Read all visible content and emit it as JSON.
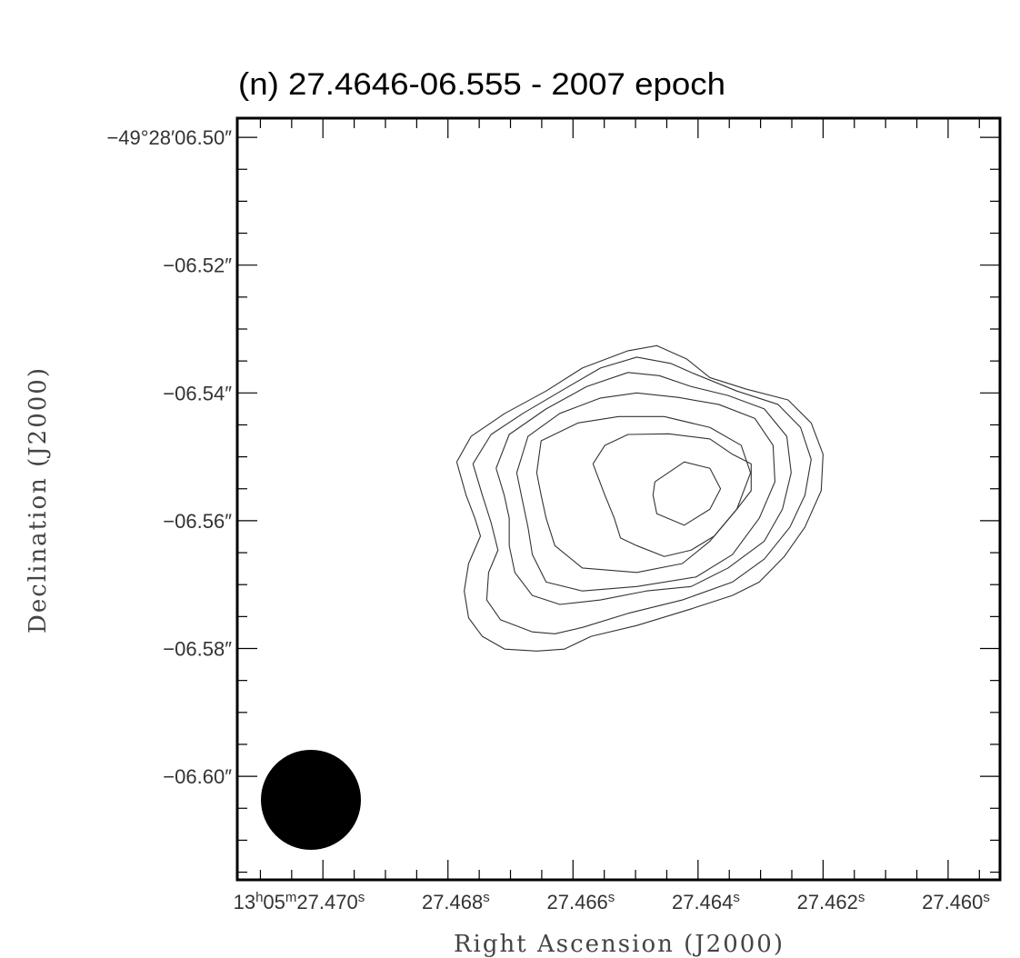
{
  "chart_data": {
    "type": "contour",
    "title": "(n) 27.4646-06.555 - 2007 epoch",
    "x_label": "Right Ascension (J2000)",
    "y_label": "Declination (J2000)",
    "xlim": [
      27.47137,
      27.45917
    ],
    "ylim": [
      -6.6162,
      -6.497
    ],
    "xticks": [
      {
        "value": 27.47,
        "label": "13h05m27.470s"
      },
      {
        "value": 27.468,
        "label": "27.468s"
      },
      {
        "value": 27.466,
        "label": "27.466s"
      },
      {
        "value": 27.464,
        "label": "27.464s"
      },
      {
        "value": 27.462,
        "label": "27.462s"
      },
      {
        "value": 27.46,
        "label": "27.460s"
      }
    ],
    "yticks": [
      {
        "value": -6.5,
        "label": "−49°28′06.50″"
      },
      {
        "value": -6.52,
        "label": "−06.52″"
      },
      {
        "value": -6.54,
        "label": "−06.54″"
      },
      {
        "value": -6.56,
        "label": "−06.56″"
      },
      {
        "value": -6.58,
        "label": "−06.58″"
      },
      {
        "value": -6.6,
        "label": "−06.60″"
      }
    ],
    "color": "#333333",
    "contours": [
      {
        "x": [
          27.46786,
          27.46763,
          27.46709,
          27.46643,
          27.46585,
          27.46512,
          27.46466,
          27.46418,
          27.46381,
          27.46323,
          27.46256,
          27.46219,
          27.462,
          27.46203,
          27.46229,
          27.46262,
          27.46302,
          27.46345,
          27.46411,
          27.46498,
          27.46571,
          27.46614,
          27.46658,
          27.46709,
          27.46745,
          27.46767,
          27.46774,
          27.46767,
          27.46748,
          27.46757,
          27.46771,
          27.46786
        ],
        "y": [
          -6.5508,
          -6.5468,
          -6.5432,
          -6.5397,
          -6.5361,
          -6.5334,
          -6.5326,
          -6.5347,
          -6.5376,
          -6.5394,
          -6.5411,
          -6.5447,
          -6.5496,
          -6.5553,
          -6.561,
          -6.5656,
          -6.5696,
          -6.5717,
          -6.5738,
          -6.5764,
          -6.5781,
          -6.5801,
          -6.5804,
          -6.5801,
          -6.5781,
          -6.5752,
          -6.571,
          -6.5667,
          -6.5624,
          -6.5596,
          -6.556,
          -6.5508
        ]
      },
      {
        "x": [
          27.4676,
          27.46731,
          27.4668,
          27.46614,
          27.46556,
          27.46498,
          27.46443,
          27.46411,
          27.46338,
          27.46272,
          27.46236,
          27.46219,
          27.46229,
          27.46253,
          27.46294,
          27.46345,
          27.46425,
          27.46512,
          27.46585,
          27.46629,
          27.46665,
          27.46716,
          27.46738,
          27.46735,
          27.4672,
          27.46731,
          27.46745,
          27.4676
        ],
        "y": [
          -6.5511,
          -6.5465,
          -6.5432,
          -6.5394,
          -6.5361,
          -6.5344,
          -6.5354,
          -6.5368,
          -6.5397,
          -6.5418,
          -6.5454,
          -6.5504,
          -6.556,
          -6.561,
          -6.566,
          -6.5696,
          -6.5724,
          -6.5745,
          -6.5767,
          -6.5777,
          -6.5774,
          -6.5755,
          -6.5724,
          -6.5681,
          -6.5646,
          -6.5603,
          -6.556,
          -6.5511
        ]
      },
      {
        "x": [
          27.46723,
          27.46702,
          27.46643,
          27.46578,
          27.46512,
          27.46462,
          27.46411,
          27.46352,
          27.46294,
          27.46258,
          27.46251,
          27.46265,
          27.46294,
          27.46352,
          27.46411,
          27.46483,
          27.46556,
          27.46621,
          27.46665,
          27.46693,
          27.46702,
          27.46702,
          27.4671,
          27.46723
        ],
        "y": [
          -6.5518,
          -6.5465,
          -6.5425,
          -6.539,
          -6.5368,
          -6.5373,
          -6.539,
          -6.5404,
          -6.5425,
          -6.5468,
          -6.5525,
          -6.5582,
          -6.5632,
          -6.5674,
          -6.5703,
          -6.571,
          -6.5724,
          -6.5731,
          -6.5717,
          -6.5681,
          -6.5639,
          -6.5596,
          -6.556,
          -6.5518
        ]
      },
      {
        "x": [
          27.4669,
          27.46672,
          27.46621,
          27.46556,
          27.46498,
          27.46432,
          27.46367,
          27.46309,
          27.4628,
          27.46277,
          27.46302,
          27.46345,
          27.46403,
          27.46498,
          27.46585,
          27.46643,
          27.46665,
          27.46672,
          27.46681,
          27.4669
        ],
        "y": [
          -6.5525,
          -6.5468,
          -6.5432,
          -6.5408,
          -6.54,
          -6.5407,
          -6.5418,
          -6.544,
          -6.5482,
          -6.5539,
          -6.5596,
          -6.5653,
          -6.5688,
          -6.5703,
          -6.571,
          -6.5696,
          -6.5653,
          -6.561,
          -6.5568,
          -6.5525
        ]
      },
      {
        "x": [
          27.46658,
          27.46651,
          27.46592,
          27.46527,
          27.46454,
          27.46381,
          27.46331,
          27.46316,
          27.46338,
          27.46381,
          27.46425,
          27.46498,
          27.46585,
          27.46629,
          27.46643,
          27.46651,
          27.46658
        ],
        "y": [
          -6.5525,
          -6.5475,
          -6.5447,
          -6.5437,
          -6.5437,
          -6.5454,
          -6.5482,
          -6.5525,
          -6.5582,
          -6.5632,
          -6.5667,
          -6.5681,
          -6.5674,
          -6.5639,
          -6.5596,
          -6.556,
          -6.5525
        ]
      },
      {
        "x": [
          27.46568,
          27.46549,
          27.46512,
          27.46447,
          27.46381,
          27.46345,
          27.46315,
          27.46315,
          27.46338,
          27.46374,
          27.46411,
          27.46454,
          27.46498,
          27.46524,
          27.46534,
          27.46549,
          27.46568
        ],
        "y": [
          -6.5511,
          -6.5482,
          -6.5465,
          -6.5464,
          -6.5472,
          -6.5496,
          -6.5511,
          -6.5553,
          -6.5582,
          -6.5624,
          -6.5646,
          -6.5656,
          -6.5639,
          -6.5627,
          -6.5596,
          -6.556,
          -6.5511
        ]
      },
      {
        "x": [
          27.46469,
          27.46422,
          27.46381,
          27.46364,
          27.46381,
          27.46422,
          27.46466,
          27.46472,
          27.46469
        ],
        "y": [
          -6.5539,
          -6.5508,
          -6.5518,
          -6.555,
          -6.5582,
          -6.5607,
          -6.5589,
          -6.556,
          -6.5539
        ]
      }
    ]
  }
}
